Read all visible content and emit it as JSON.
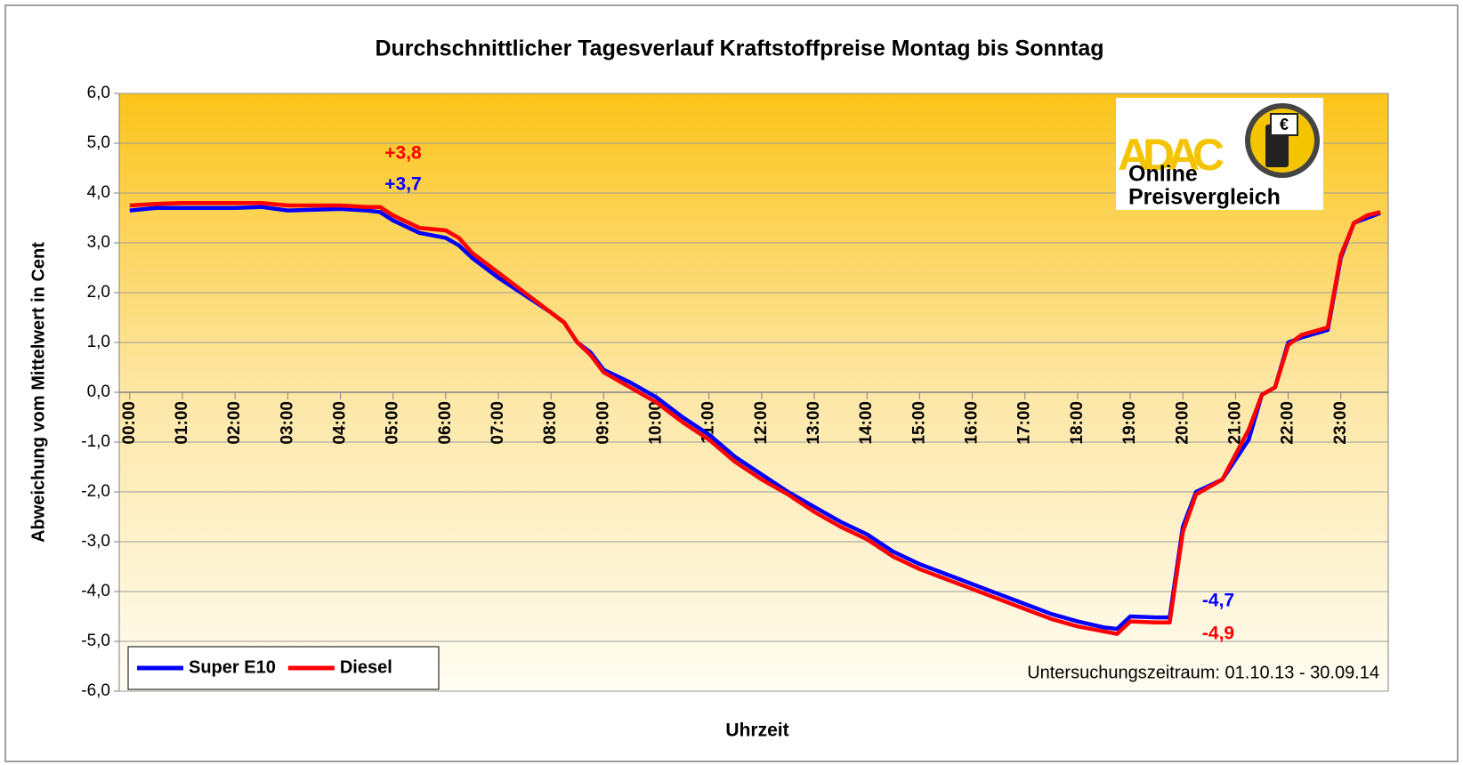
{
  "chart_data": {
    "type": "line",
    "title": "Durchschnittlicher Tagesverlauf Kraftstoffpreise Montag bis Sonntag",
    "xlabel": "Uhrzeit",
    "ylabel": "Abweichung vom Mittelwert in Cent",
    "note": "Untersuchungszeitraum: 01.10.13 - 30.09.14",
    "logo": {
      "brand": "ADAC",
      "line1": "Online",
      "line2": "Preisvergleich",
      "symbol": "€"
    },
    "x": [
      0,
      0.5,
      1,
      2,
      2.5,
      3,
      4,
      4.5,
      4.75,
      5,
      5.5,
      6,
      6.25,
      6.5,
      7,
      7.5,
      8,
      8.25,
      8.5,
      8.75,
      9,
      9.5,
      10,
      10.5,
      11,
      11.5,
      12,
      12.5,
      13,
      13.5,
      14,
      14.5,
      15,
      15.5,
      16,
      16.5,
      17,
      17.5,
      18,
      18.5,
      18.75,
      19,
      19.5,
      19.75,
      20,
      20.25,
      20.75,
      21.25,
      21.5,
      21.75,
      22,
      22.25,
      22.75,
      23,
      23.25,
      23.5,
      23.75
    ],
    "series": [
      {
        "name": "Super E10",
        "color": "#0000ff",
        "values": [
          3.65,
          3.7,
          3.7,
          3.7,
          3.72,
          3.65,
          3.68,
          3.65,
          3.62,
          3.45,
          3.2,
          3.1,
          2.95,
          2.7,
          2.3,
          1.95,
          1.6,
          1.4,
          1.0,
          0.8,
          0.45,
          0.2,
          -0.1,
          -0.5,
          -0.85,
          -1.3,
          -1.65,
          -2.0,
          -2.3,
          -2.6,
          -2.85,
          -3.2,
          -3.45,
          -3.65,
          -3.85,
          -4.05,
          -4.25,
          -4.45,
          -4.6,
          -4.72,
          -4.75,
          -4.5,
          -4.52,
          -4.52,
          -2.7,
          -2.0,
          -1.75,
          -0.95,
          -0.05,
          0.1,
          1.0,
          1.1,
          1.25,
          2.7,
          3.4,
          3.5,
          3.6
        ]
      },
      {
        "name": "Diesel",
        "color": "#ff0000",
        "values": [
          3.75,
          3.78,
          3.8,
          3.8,
          3.8,
          3.75,
          3.75,
          3.72,
          3.72,
          3.55,
          3.3,
          3.25,
          3.1,
          2.8,
          2.4,
          2.0,
          1.6,
          1.4,
          1.0,
          0.75,
          0.4,
          0.1,
          -0.2,
          -0.6,
          -0.95,
          -1.4,
          -1.75,
          -2.05,
          -2.4,
          -2.7,
          -2.95,
          -3.3,
          -3.55,
          -3.75,
          -3.95,
          -4.15,
          -4.35,
          -4.55,
          -4.7,
          -4.8,
          -4.85,
          -4.6,
          -4.62,
          -4.62,
          -2.8,
          -2.05,
          -1.75,
          -0.75,
          -0.05,
          0.1,
          0.95,
          1.15,
          1.3,
          2.75,
          3.4,
          3.55,
          3.62
        ]
      }
    ],
    "annotations": [
      {
        "text": "+3,8",
        "color": "#ff0000"
      },
      {
        "text": "+3,7",
        "color": "#0000ff"
      },
      {
        "text": "-4,7",
        "color": "#0000ff"
      },
      {
        "text": "-4,9",
        "color": "#ff0000"
      }
    ],
    "xlim": [
      -0.2,
      23.9
    ],
    "xticks": [
      {
        "value": 0,
        "label": "00:00"
      },
      {
        "value": 1,
        "label": "01:00"
      },
      {
        "value": 2,
        "label": "02:00"
      },
      {
        "value": 3,
        "label": "03:00"
      },
      {
        "value": 4,
        "label": "04:00"
      },
      {
        "value": 5,
        "label": "05:00"
      },
      {
        "value": 6,
        "label": "06:00"
      },
      {
        "value": 7,
        "label": "07:00"
      },
      {
        "value": 8,
        "label": "08:00"
      },
      {
        "value": 9,
        "label": "09:00"
      },
      {
        "value": 10,
        "label": "10:00"
      },
      {
        "value": 11,
        "label": "11:00"
      },
      {
        "value": 12,
        "label": "12:00"
      },
      {
        "value": 13,
        "label": "13:00"
      },
      {
        "value": 14,
        "label": "14:00"
      },
      {
        "value": 15,
        "label": "15:00"
      },
      {
        "value": 16,
        "label": "16:00"
      },
      {
        "value": 17,
        "label": "17:00"
      },
      {
        "value": 18,
        "label": "18:00"
      },
      {
        "value": 19,
        "label": "19:00"
      },
      {
        "value": 20,
        "label": "20:00"
      },
      {
        "value": 21,
        "label": "21:00"
      },
      {
        "value": 22,
        "label": "22:00"
      },
      {
        "value": 23,
        "label": "23:00"
      }
    ],
    "ylim": [
      -6,
      6
    ],
    "yticks": [
      {
        "value": 6,
        "label": "6,0"
      },
      {
        "value": 5,
        "label": "5,0"
      },
      {
        "value": 4,
        "label": "4,0"
      },
      {
        "value": 3,
        "label": "3,0"
      },
      {
        "value": 2,
        "label": "2,0"
      },
      {
        "value": 1,
        "label": "1,0"
      },
      {
        "value": 0,
        "label": "0,0"
      },
      {
        "value": -1,
        "label": "-1,0"
      },
      {
        "value": -2,
        "label": "-2,0"
      },
      {
        "value": -3,
        "label": "-3,0"
      },
      {
        "value": -4,
        "label": "-4,0"
      },
      {
        "value": -5,
        "label": "-5,0"
      },
      {
        "value": -6,
        "label": "-6,0"
      }
    ],
    "grid": true,
    "legend": "lower left"
  }
}
